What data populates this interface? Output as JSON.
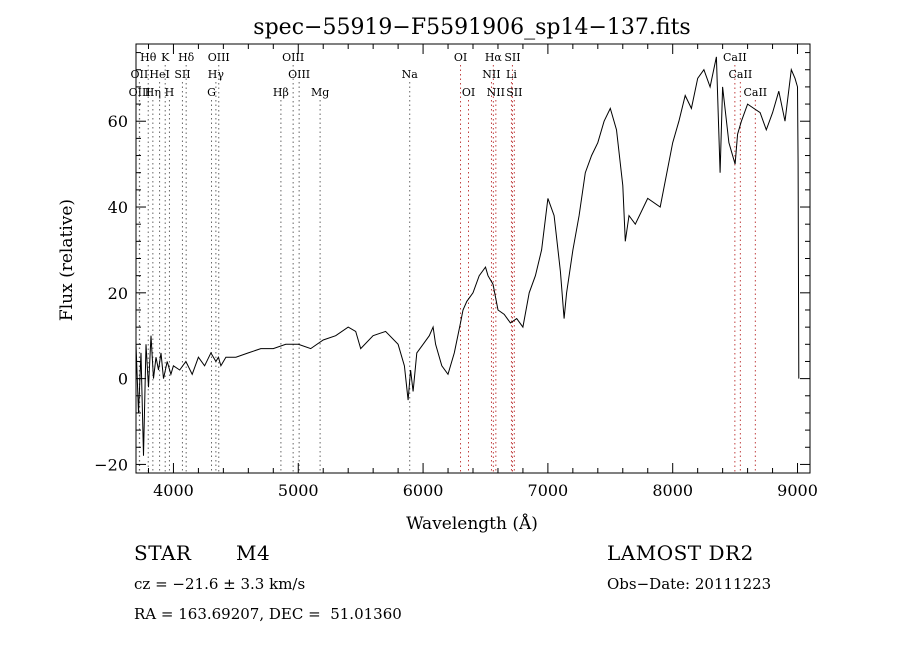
{
  "chart_data": {
    "type": "line",
    "title": "spec−55919−F5591906_sp14−137.fits",
    "xlabel": "Wavelength (Å)",
    "ylabel": "Flux (relative)",
    "xlim": [
      3700,
      9100
    ],
    "ylim": [
      -22,
      78
    ],
    "x_ticks": [
      4000,
      5000,
      6000,
      7000,
      8000,
      9000
    ],
    "y_ticks": [
      -20,
      0,
      20,
      40,
      60
    ],
    "y_tick_labels": [
      "−20",
      "0",
      "20",
      "40",
      "60"
    ],
    "grid": false,
    "series": [
      {
        "x": [
          3700,
          3720,
          3740,
          3760,
          3780,
          3800,
          3820,
          3840,
          3860,
          3880,
          3900,
          3920,
          3950,
          3980,
          4000,
          4050,
          4100,
          4150,
          4200,
          4250,
          4300,
          4340,
          4360,
          4380,
          4420,
          4500,
          4600,
          4700,
          4800,
          4900,
          5000,
          5100,
          5200,
          5300,
          5400,
          5460,
          5500,
          5600,
          5700,
          5800,
          5850,
          5880,
          5900,
          5920,
          5950,
          6000,
          6050,
          6080,
          6100,
          6150,
          6200,
          6250,
          6300,
          6320,
          6350,
          6400,
          6450,
          6500,
          6520,
          6560,
          6600,
          6650,
          6700,
          6750,
          6800,
          6850,
          6900,
          6950,
          7000,
          7050,
          7100,
          7130,
          7150,
          7200,
          7250,
          7300,
          7350,
          7400,
          7450,
          7500,
          7550,
          7600,
          7620,
          7650,
          7700,
          7800,
          7900,
          8000,
          8050,
          8100,
          8150,
          8200,
          8250,
          8300,
          8350,
          8380,
          8400,
          8450,
          8500,
          8520,
          8550,
          8600,
          8650,
          8700,
          8750,
          8800,
          8850,
          8900,
          8950,
          8980,
          9000,
          9005,
          9010
        ],
        "y": [
          8,
          -8,
          6,
          -18,
          8,
          -2,
          10,
          0,
          5,
          2,
          6,
          0,
          4,
          1,
          3,
          2,
          4,
          1,
          5,
          3,
          6,
          4,
          5,
          3,
          5,
          5,
          6,
          7,
          7,
          8,
          8,
          7,
          9,
          10,
          12,
          11,
          7,
          10,
          11,
          8,
          3,
          -5,
          2,
          -3,
          6,
          8,
          10,
          12,
          8,
          3,
          1,
          6,
          13,
          16,
          18,
          20,
          24,
          26,
          24,
          22,
          16,
          15,
          13,
          14,
          12,
          20,
          24,
          30,
          42,
          38,
          25,
          14,
          20,
          30,
          38,
          48,
          52,
          55,
          60,
          63,
          58,
          45,
          32,
          38,
          36,
          42,
          40,
          55,
          60,
          66,
          63,
          70,
          72,
          68,
          75,
          48,
          68,
          55,
          50,
          57,
          60,
          64,
          63,
          62,
          58,
          62,
          67,
          60,
          72,
          70,
          68,
          50,
          0
        ]
      }
    ],
    "line_markers": [
      {
        "label": "Hθ",
        "x": 3798,
        "row": 0
      },
      {
        "label": "K",
        "x": 3934,
        "row": 0
      },
      {
        "label": "Hδ",
        "x": 4102,
        "row": 0
      },
      {
        "label": "OIII",
        "x": 4363,
        "row": 0
      },
      {
        "label": "OIII",
        "x": 4959,
        "row": 0
      },
      {
        "label": "OI",
        "x": 6300,
        "row": 0
      },
      {
        "label": "Hα",
        "x": 6563,
        "row": 0
      },
      {
        "label": "SII",
        "x": 6716,
        "row": 0
      },
      {
        "label": "CaII",
        "x": 8498,
        "row": 0
      },
      {
        "label": "OII",
        "x": 3727,
        "row": 1
      },
      {
        "label": "HeI",
        "x": 3889,
        "row": 1
      },
      {
        "label": "SII",
        "x": 4072,
        "row": 1
      },
      {
        "label": "Hγ",
        "x": 4340,
        "row": 1
      },
      {
        "label": "OIII",
        "x": 5007,
        "row": 1
      },
      {
        "label": "Na",
        "x": 5893,
        "row": 1
      },
      {
        "label": "NII",
        "x": 6548,
        "row": 1
      },
      {
        "label": "Li",
        "x": 6708,
        "row": 1
      },
      {
        "label": "CaII",
        "x": 8542,
        "row": 1
      },
      {
        "label": "OIII",
        "x": 3729,
        "row": 2
      },
      {
        "label": "Hη",
        "x": 3835,
        "row": 2
      },
      {
        "label": "H",
        "x": 3968,
        "row": 2
      },
      {
        "label": "G",
        "x": 4305,
        "row": 2
      },
      {
        "label": "Hβ",
        "x": 4861,
        "row": 2
      },
      {
        "label": "Mg",
        "x": 5175,
        "row": 2
      },
      {
        "label": "OI",
        "x": 6364,
        "row": 2
      },
      {
        "label": "NII",
        "x": 6583,
        "row": 2
      },
      {
        "label": "SII",
        "x": 6731,
        "row": 2
      },
      {
        "label": "CaII",
        "x": 8662,
        "row": 2
      }
    ]
  },
  "info": {
    "object_class": "STAR",
    "subclass": "M4",
    "survey": "LAMOST DR2",
    "cz": "cz = −21.6 ± 3.3 km/s",
    "obs_date": "Obs−Date: 20111223",
    "coords": "RA = 163.69207, DEC =  51.01360"
  }
}
